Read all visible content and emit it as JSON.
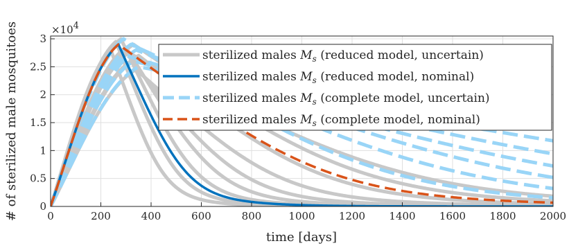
{
  "chart_data": {
    "type": "line",
    "xlabel": "time [days]",
    "ylabel": "# of sterilized male mosquitoes",
    "xlim": [
      0,
      2000
    ],
    "ylim": [
      0,
      30500
    ],
    "y_multiplier": "×10",
    "y_multiplier_exponent": "4",
    "x_ticks": [
      "0",
      "200",
      "400",
      "600",
      "800",
      "1000",
      "1200",
      "1400",
      "1600",
      "1800",
      "2000"
    ],
    "x_tick_values": [
      0,
      200,
      400,
      600,
      800,
      1000,
      1200,
      1400,
      1600,
      1800,
      2000
    ],
    "y_ticks": [
      "0",
      "0.5",
      "1",
      "1.5",
      "2",
      "2.5",
      "3"
    ],
    "y_tick_values": [
      0,
      5000,
      10000,
      15000,
      20000,
      25000,
      30000
    ],
    "grid": true,
    "legend_position": "top-right",
    "legend": [
      {
        "text": "sterilized males M_s (reduced model, uncertain)",
        "color": "#c8c8c8",
        "dash": "solid"
      },
      {
        "text": "sterilized males M_s (reduced model, nominal)",
        "color": "#0072bd",
        "dash": "solid"
      },
      {
        "text": "sterilized males M_s (complete model, uncertain)",
        "color": "#99d5f7",
        "dash": "dashed"
      },
      {
        "text": "sterilized males M_s (complete model, nominal)",
        "color": "#d95319",
        "dash": "dashed"
      }
    ],
    "legend_parts": [
      {
        "prefix": "sterilized males ",
        "var": "M",
        "sub": "s",
        "suffix": " (reduced model, uncertain)"
      },
      {
        "prefix": "sterilized males ",
        "var": "M",
        "sub": "s",
        "suffix": " (reduced model, nominal)"
      },
      {
        "prefix": "sterilized males ",
        "var": "M",
        "sub": "s",
        "suffix": " (complete model, uncertain)"
      },
      {
        "prefix": "sterilized males ",
        "var": "M",
        "sub": "s",
        "suffix": " (complete model, nominal)"
      }
    ],
    "series": [
      {
        "group": "reduced_uncertain",
        "color": "#c8c8c8",
        "peak_t": 240,
        "peak": 28000,
        "rise_w": 130,
        "fall_w": 120,
        "tail": 0
      },
      {
        "group": "reduced_uncertain",
        "color": "#c8c8c8",
        "peak_t": 260,
        "peak": 29500,
        "rise_w": 140,
        "fall_w": 140,
        "tail": 0
      },
      {
        "group": "reduced_uncertain",
        "color": "#c8c8c8",
        "peak_t": 280,
        "peak": 30000,
        "rise_w": 150,
        "fall_w": 170,
        "tail": 0
      },
      {
        "group": "reduced_uncertain",
        "color": "#c8c8c8",
        "peak_t": 300,
        "peak": 28500,
        "rise_w": 160,
        "fall_w": 210,
        "tail": 0
      },
      {
        "group": "reduced_uncertain",
        "color": "#c8c8c8",
        "peak_t": 320,
        "peak": 26000,
        "rise_w": 175,
        "fall_w": 260,
        "tail": 0
      },
      {
        "group": "reduced_uncertain",
        "color": "#c8c8c8",
        "peak_t": 340,
        "peak": 24500,
        "rise_w": 185,
        "fall_w": 330,
        "tail": 0
      },
      {
        "group": "reduced_uncertain",
        "color": "#c8c8c8",
        "peak_t": 350,
        "peak": 27000,
        "rise_w": 180,
        "fall_w": 420,
        "tail": 0
      },
      {
        "group": "reduced_uncertain",
        "color": "#c8c8c8",
        "peak_t": 330,
        "peak": 29000,
        "rise_w": 170,
        "fall_w": 520,
        "tail": 0
      },
      {
        "group": "reduced_uncertain",
        "color": "#c8c8c8",
        "peak_t": 310,
        "peak": 27500,
        "rise_w": 165,
        "fall_w": 640,
        "tail": 0
      },
      {
        "group": "complete_uncertain",
        "color": "#99d5f7",
        "peak_t": 290,
        "peak": 30000,
        "rise_w": 150,
        "fall_w": 600,
        "tail": 0
      },
      {
        "group": "complete_uncertain",
        "color": "#99d5f7",
        "peak_t": 320,
        "peak": 29000,
        "rise_w": 170,
        "fall_w": 750,
        "tail": 0
      },
      {
        "group": "complete_uncertain",
        "color": "#99d5f7",
        "peak_t": 340,
        "peak": 28000,
        "rise_w": 180,
        "fall_w": 900,
        "tail": 0
      },
      {
        "group": "complete_uncertain",
        "color": "#99d5f7",
        "peak_t": 300,
        "peak": 27000,
        "rise_w": 160,
        "fall_w": 1100,
        "tail": 0
      },
      {
        "group": "complete_uncertain",
        "color": "#99d5f7",
        "peak_t": 330,
        "peak": 26000,
        "rise_w": 175,
        "fall_w": 1300,
        "tail": 0
      },
      {
        "group": "complete_uncertain",
        "color": "#99d5f7",
        "peak_t": 350,
        "peak": 25000,
        "rise_w": 185,
        "fall_w": 1600,
        "tail": 0
      },
      {
        "group": "reduced_nominal",
        "color": "#0072bd",
        "peak_t": 270,
        "peak": 29000,
        "rise_w": 145,
        "fall_w": 155,
        "tail": 0
      },
      {
        "group": "complete_nominal",
        "color": "#d95319",
        "peak_t": 270,
        "peak": 29000,
        "rise_w": 145,
        "fall_w": 480,
        "tail": 0
      }
    ]
  }
}
